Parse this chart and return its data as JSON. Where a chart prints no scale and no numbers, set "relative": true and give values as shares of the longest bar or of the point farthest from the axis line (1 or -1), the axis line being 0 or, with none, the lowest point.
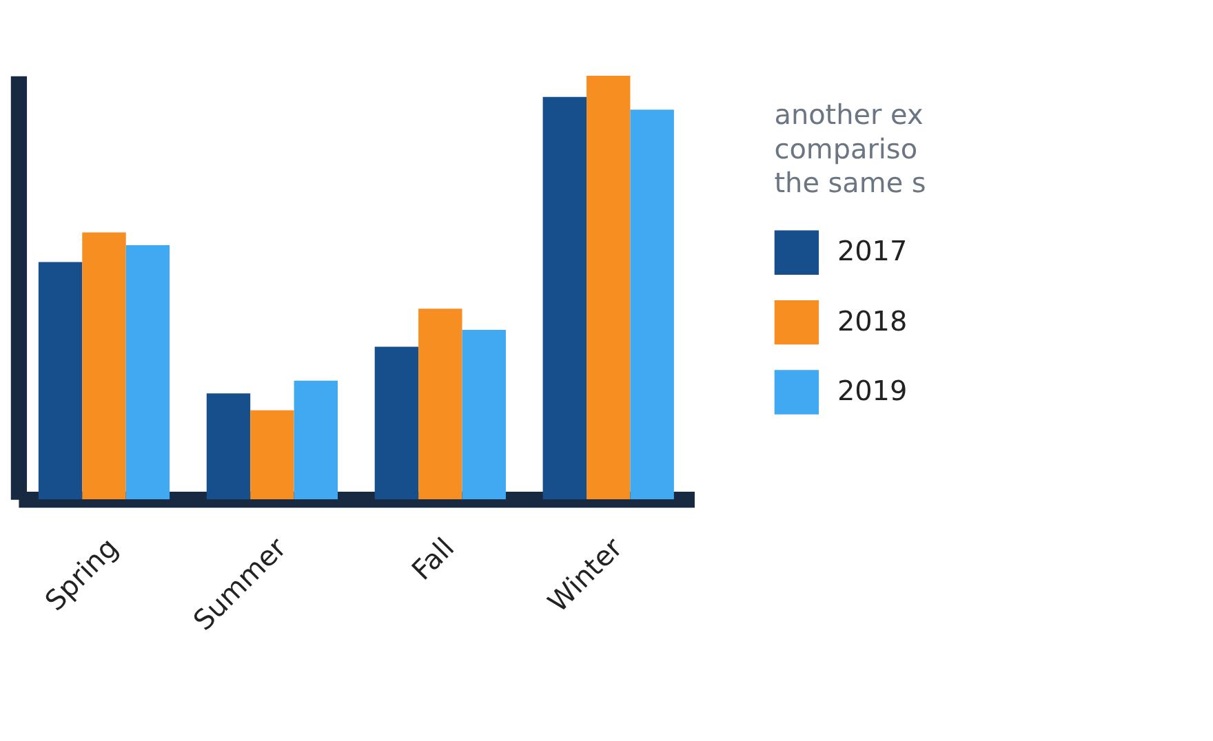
{
  "chart_data": {
    "type": "bar",
    "relative": true,
    "categories": [
      "Spring",
      "Summer",
      "Fall",
      "Winter"
    ],
    "series": [
      {
        "name": "2017",
        "color": "#174e8c",
        "values": [
          0.56,
          0.25,
          0.36,
          0.95
        ]
      },
      {
        "name": "2018",
        "color": "#f68e21",
        "values": [
          0.63,
          0.21,
          0.45,
          1
        ]
      },
      {
        "name": "2019",
        "color": "#41a8f2",
        "values": [
          0.6,
          0.28,
          0.4,
          0.92
        ]
      }
    ],
    "legend": "right",
    "grid": false,
    "annotations": [
      "another ex",
      "compariso",
      "the same s"
    ]
  }
}
